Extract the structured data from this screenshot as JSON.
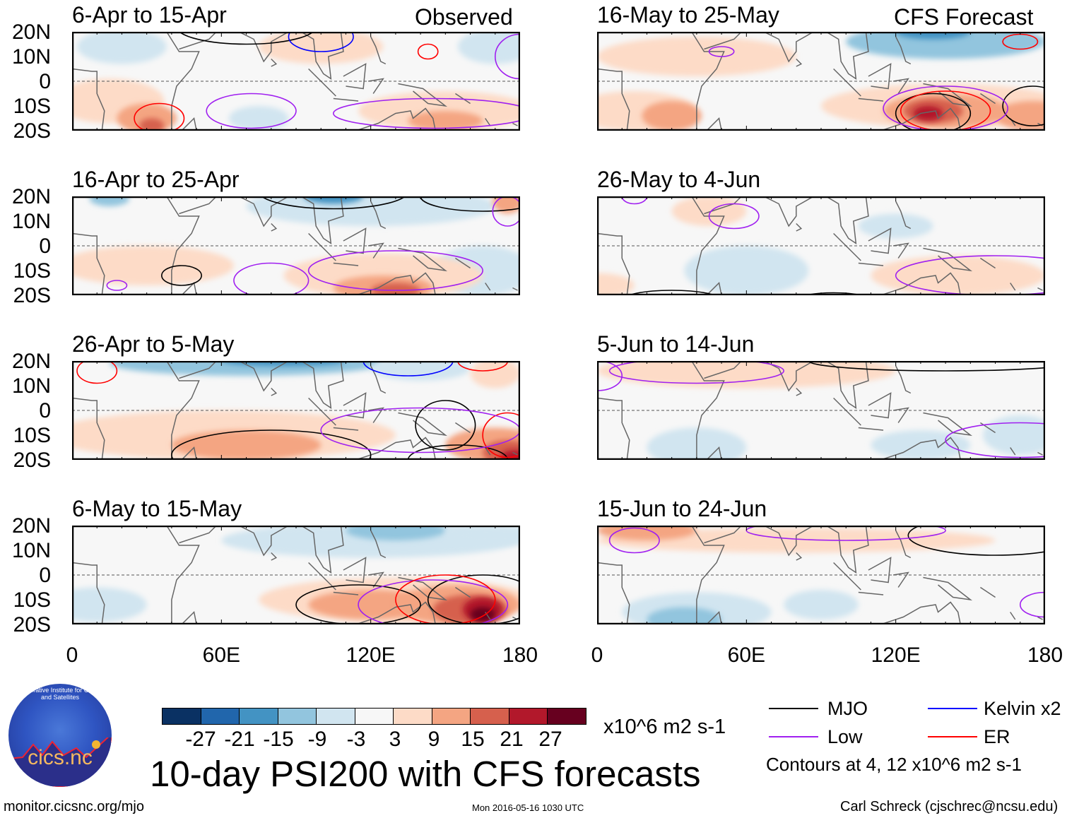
{
  "title": "10-day PSI200 with CFS forecasts",
  "observed_label": "Observed",
  "forecast_label": "CFS Forecast",
  "lat_labels": [
    "20N",
    "10N",
    "0",
    "10S",
    "20S"
  ],
  "lon_labels": [
    "0",
    "60E",
    "120E",
    "180"
  ],
  "colorbar": {
    "colors": [
      "#0a3163",
      "#2166ac",
      "#4393c3",
      "#92c5de",
      "#d1e5f0",
      "#f7f7f7",
      "#fddbc7",
      "#f4a582",
      "#d6604d",
      "#b2182b",
      "#67001f"
    ],
    "ticks": [
      "-27",
      "-21",
      "-15",
      "-9",
      "-3",
      "3",
      "9",
      "15",
      "21",
      "27"
    ],
    "units": "x10^6 m2 s-1"
  },
  "legend": {
    "items": [
      {
        "label": "MJO",
        "color": "#000000"
      },
      {
        "label": "Kelvin x2",
        "color": "#0000ff"
      },
      {
        "label": "Low",
        "color": "#a020f0"
      },
      {
        "label": "ER",
        "color": "#ff0000"
      }
    ],
    "note": "Contours at 4, 12 x10^6 m2 s-1"
  },
  "logo_text": "cics.nc",
  "logo_ring_text": "Cooperative Institute for Climate and Satellites",
  "footer": {
    "url": "monitor.cicsnc.org/mjo",
    "timestamp": "Mon 2016-05-16 1030 UTC",
    "author": "Carl Schreck (cjschrec@ncsu.edu)"
  },
  "panels": [
    {
      "title": "6-Apr to 15-Apr",
      "side": "observed",
      "anomalies": [
        [
          20,
          14,
          18,
          7,
          -3
        ],
        [
          170,
          14,
          15,
          7,
          -3
        ],
        [
          75,
          -15,
          12,
          5,
          -3
        ],
        [
          15,
          -8,
          22,
          9,
          3
        ],
        [
          100,
          14,
          25,
          7,
          3
        ],
        [
          150,
          -12,
          35,
          8,
          3
        ],
        [
          30,
          -15,
          12,
          6,
          9
        ],
        [
          150,
          -16,
          15,
          4,
          9
        ],
        [
          32,
          -18,
          5,
          3,
          15
        ]
      ],
      "contours": [
        [
          70,
          22,
          28,
          7,
          "MJO"
        ],
        [
          100,
          18,
          13,
          6,
          "Kelvin"
        ],
        [
          143,
          12,
          4,
          3,
          "ER"
        ],
        [
          72,
          -12,
          18,
          7,
          "Low"
        ],
        [
          35,
          -15,
          10,
          6,
          "ER"
        ],
        [
          180,
          10,
          10,
          9,
          "Low"
        ],
        [
          145,
          -13,
          40,
          6,
          "Low"
        ]
      ]
    },
    {
      "title": "16-May to 25-May",
      "side": "forecast",
      "anomalies": [
        [
          140,
          16,
          40,
          7,
          -9
        ],
        [
          135,
          20,
          15,
          3,
          -15
        ],
        [
          40,
          10,
          40,
          8,
          3
        ],
        [
          15,
          -12,
          25,
          8,
          3
        ],
        [
          140,
          -10,
          50,
          9,
          3
        ],
        [
          30,
          -14,
          12,
          6,
          9
        ],
        [
          140,
          -12,
          25,
          7,
          9
        ],
        [
          175,
          -14,
          15,
          6,
          9
        ],
        [
          135,
          -12,
          12,
          5,
          15
        ],
        [
          133,
          -13,
          6,
          3,
          21
        ]
      ],
      "contours": [
        [
          135,
          -13,
          15,
          8,
          "MJO"
        ],
        [
          175,
          -10,
          12,
          8,
          "MJO"
        ],
        [
          140,
          -12,
          18,
          8,
          "ER"
        ],
        [
          170,
          16,
          7,
          3,
          "ER"
        ],
        [
          50,
          12,
          5,
          2,
          "Low"
        ],
        [
          140,
          -11,
          25,
          9,
          "Low"
        ]
      ]
    },
    {
      "title": "16-Apr to 25-Apr",
      "side": "observed",
      "anomalies": [
        [
          120,
          16,
          50,
          8,
          -3
        ],
        [
          105,
          20,
          12,
          3,
          -15
        ],
        [
          15,
          19,
          8,
          3,
          -9
        ],
        [
          165,
          -10,
          20,
          10,
          -3
        ],
        [
          30,
          -8,
          35,
          8,
          3
        ],
        [
          125,
          -12,
          40,
          9,
          3
        ],
        [
          125,
          -17,
          20,
          5,
          9
        ],
        [
          130,
          -18,
          10,
          3,
          15
        ],
        [
          175,
          18,
          6,
          5,
          9
        ]
      ],
      "contours": [
        [
          105,
          22,
          30,
          7,
          "MJO"
        ],
        [
          165,
          20,
          25,
          6,
          "MJO"
        ],
        [
          44,
          -12,
          8,
          4,
          "MJO"
        ],
        [
          80,
          -14,
          15,
          7,
          "Low"
        ],
        [
          130,
          -10,
          35,
          8,
          "Low"
        ],
        [
          175,
          14,
          6,
          6,
          "Low"
        ],
        [
          18,
          -16,
          4,
          2,
          "Low"
        ]
      ]
    },
    {
      "title": "26-May to 4-Jun",
      "side": "forecast",
      "anomalies": [
        [
          45,
          14,
          15,
          6,
          3
        ],
        [
          60,
          -10,
          25,
          10,
          -3
        ],
        [
          145,
          -12,
          35,
          8,
          3
        ],
        [
          0,
          -16,
          15,
          5,
          3
        ],
        [
          120,
          8,
          15,
          5,
          -3
        ]
      ],
      "contours": [
        [
          55,
          12,
          10,
          5,
          "Low"
        ],
        [
          15,
          20,
          5,
          3,
          "Low"
        ],
        [
          160,
          -12,
          40,
          8,
          "Low"
        ],
        [
          30,
          -22,
          20,
          4,
          "MJO"
        ],
        [
          95,
          -22,
          15,
          3,
          "MJO"
        ]
      ]
    },
    {
      "title": "26-Apr to 5-May",
      "side": "observed",
      "anomalies": [
        [
          70,
          19,
          55,
          5,
          -9
        ],
        [
          85,
          20,
          25,
          2,
          -15
        ],
        [
          140,
          17,
          20,
          5,
          -3
        ],
        [
          60,
          -10,
          70,
          10,
          3
        ],
        [
          70,
          -14,
          30,
          6,
          9
        ],
        [
          170,
          -14,
          20,
          7,
          9
        ],
        [
          175,
          -17,
          10,
          5,
          15
        ],
        [
          178,
          -19,
          6,
          3,
          21
        ],
        [
          170,
          15,
          10,
          6,
          3
        ]
      ],
      "contours": [
        [
          80,
          -18,
          40,
          10,
          "MJO"
        ],
        [
          150,
          -6,
          12,
          10,
          "MJO"
        ],
        [
          155,
          -20,
          20,
          6,
          "MJO"
        ],
        [
          10,
          16,
          8,
          5,
          "ER"
        ],
        [
          175,
          -10,
          10,
          9,
          "ER"
        ],
        [
          165,
          20,
          10,
          4,
          "ER"
        ],
        [
          135,
          20,
          18,
          6,
          "Kelvin"
        ],
        [
          140,
          -8,
          40,
          9,
          "Low"
        ]
      ]
    },
    {
      "title": "5-Jun to 14-Jun",
      "side": "forecast",
      "anomalies": [
        [
          60,
          16,
          60,
          7,
          3
        ],
        [
          40,
          -15,
          20,
          8,
          -3
        ],
        [
          130,
          -14,
          20,
          6,
          -3
        ],
        [
          170,
          -10,
          15,
          8,
          -3
        ]
      ],
      "contours": [
        [
          140,
          20,
          55,
          4,
          "MJO"
        ],
        [
          0,
          14,
          10,
          6,
          "Low"
        ],
        [
          40,
          16,
          35,
          5,
          "Low"
        ],
        [
          170,
          -12,
          30,
          7,
          "Low"
        ]
      ]
    },
    {
      "title": "6-May to 15-May",
      "side": "observed",
      "anomalies": [
        [
          120,
          14,
          60,
          7,
          -3
        ],
        [
          130,
          18,
          20,
          4,
          -9
        ],
        [
          170,
          16,
          20,
          4,
          -3
        ],
        [
          10,
          -12,
          20,
          7,
          -3
        ],
        [
          130,
          -10,
          55,
          9,
          3
        ],
        [
          120,
          -12,
          25,
          6,
          9
        ],
        [
          155,
          -12,
          25,
          8,
          9
        ],
        [
          160,
          -14,
          15,
          6,
          15
        ],
        [
          165,
          -14,
          8,
          5,
          21
        ],
        [
          165,
          -16,
          5,
          3,
          27
        ]
      ],
      "contours": [
        [
          115,
          -12,
          25,
          8,
          "MJO"
        ],
        [
          165,
          -10,
          22,
          10,
          "MJO"
        ],
        [
          145,
          -12,
          30,
          10,
          "Low"
        ],
        [
          150,
          -10,
          20,
          10,
          "ER"
        ]
      ]
    },
    {
      "title": "15-Jun to 24-Jun",
      "side": "forecast",
      "anomalies": [
        [
          80,
          14,
          80,
          5,
          3
        ],
        [
          20,
          18,
          20,
          4,
          9
        ],
        [
          40,
          -15,
          30,
          8,
          -3
        ],
        [
          35,
          -18,
          15,
          5,
          -9
        ],
        [
          90,
          -12,
          15,
          6,
          -3
        ]
      ],
      "contours": [
        [
          160,
          16,
          35,
          8,
          "MJO"
        ],
        [
          15,
          14,
          10,
          5,
          "Low"
        ],
        [
          100,
          18,
          40,
          4,
          "Low"
        ],
        [
          180,
          -12,
          10,
          5,
          "Low"
        ]
      ]
    }
  ]
}
